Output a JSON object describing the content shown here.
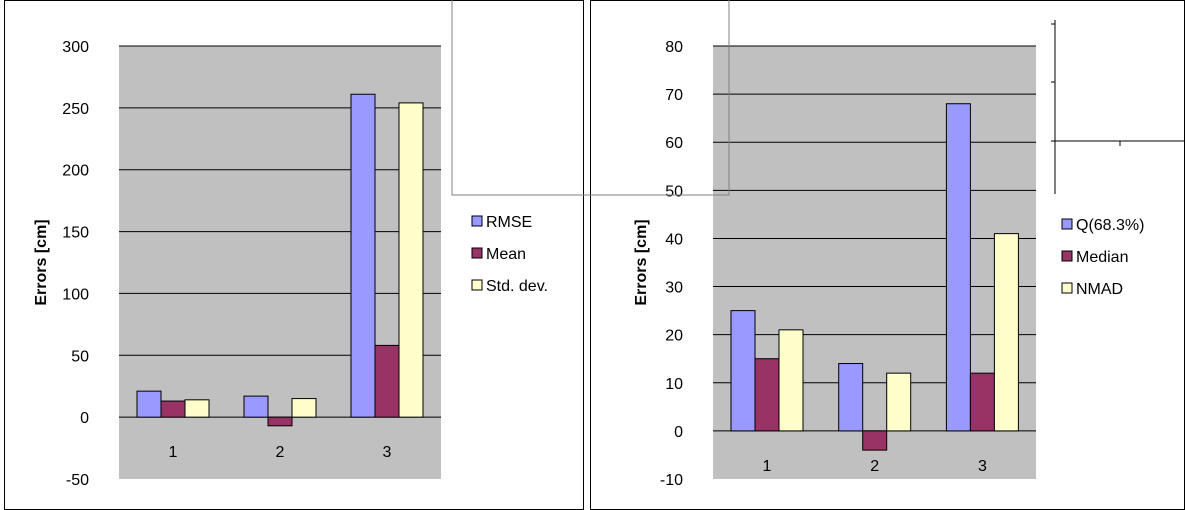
{
  "colors": {
    "plot_bg": "#c0c0c0",
    "grid": "#000000",
    "frame": "#000000",
    "overlay_line": "#808080",
    "series": [
      "#9999ff",
      "#993366",
      "#ffffcc"
    ]
  },
  "chart_data": [
    {
      "type": "bar",
      "title": "",
      "xlabel": "",
      "ylabel": "Errors [cm]",
      "categories": [
        "1",
        "2",
        "3"
      ],
      "ylim": [
        -50,
        300
      ],
      "yticks": [
        "-50",
        "0",
        "50",
        "100",
        "150",
        "200",
        "250",
        "300"
      ],
      "grid": true,
      "legend_position": "right",
      "series": [
        {
          "name": "RMSE",
          "values": [
            21,
            17,
            261
          ]
        },
        {
          "name": "Mean",
          "values": [
            13,
            -7,
            58
          ]
        },
        {
          "name": "Std. dev.",
          "values": [
            14,
            15,
            254
          ]
        }
      ]
    },
    {
      "type": "bar",
      "title": "",
      "xlabel": "",
      "ylabel": "Errors [cm]",
      "categories": [
        "1",
        "2",
        "3"
      ],
      "ylim": [
        -10,
        80
      ],
      "yticks": [
        "-10",
        "0",
        "10",
        "20",
        "30",
        "40",
        "50",
        "60",
        "70",
        "80"
      ],
      "grid": true,
      "legend_position": "right",
      "series": [
        {
          "name": "Q(68.3%)",
          "values": [
            25,
            14,
            68
          ]
        },
        {
          "name": "Median",
          "values": [
            15,
            -4,
            12
          ]
        },
        {
          "name": "NMAD",
          "values": [
            21,
            12,
            41
          ]
        }
      ]
    }
  ]
}
